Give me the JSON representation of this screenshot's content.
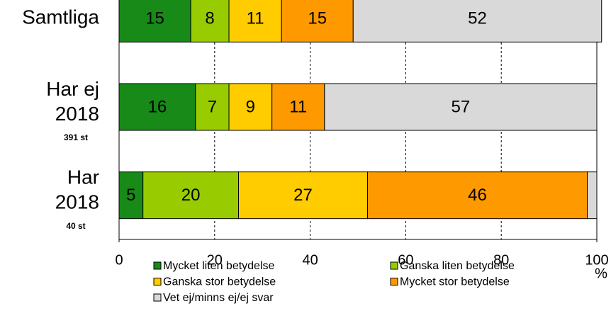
{
  "chart_data": {
    "type": "stacked-barh",
    "categories": [
      [
        "Samtliga"
      ],
      [
        "Har ej",
        "2018"
      ],
      [
        "Har",
        "2018"
      ]
    ],
    "counts": [
      null,
      "391 st",
      "40 st"
    ],
    "series": [
      {
        "name": "Mycket liten betydelse",
        "color": "#178a17",
        "values": [
          15,
          16,
          5
        ]
      },
      {
        "name": "Ganska liten betydelse",
        "color": "#99cc00",
        "values": [
          8,
          7,
          20
        ]
      },
      {
        "name": "Ganska stor betydelse",
        "color": "#ffcc00",
        "values": [
          11,
          9,
          27
        ]
      },
      {
        "name": "Mycket stor betydelse",
        "color": "#ff9900",
        "values": [
          15,
          11,
          46
        ]
      },
      {
        "name": "Vet ej/minns ej/ej svar",
        "color": "#d9d9d9",
        "values": [
          52,
          57,
          2
        ],
        "value_labels": [
          52,
          57,
          null
        ]
      }
    ],
    "xlim": [
      0,
      100
    ],
    "xticks": [
      0,
      20,
      40,
      60,
      80,
      100
    ],
    "xlabel": "%",
    "grid": true
  }
}
